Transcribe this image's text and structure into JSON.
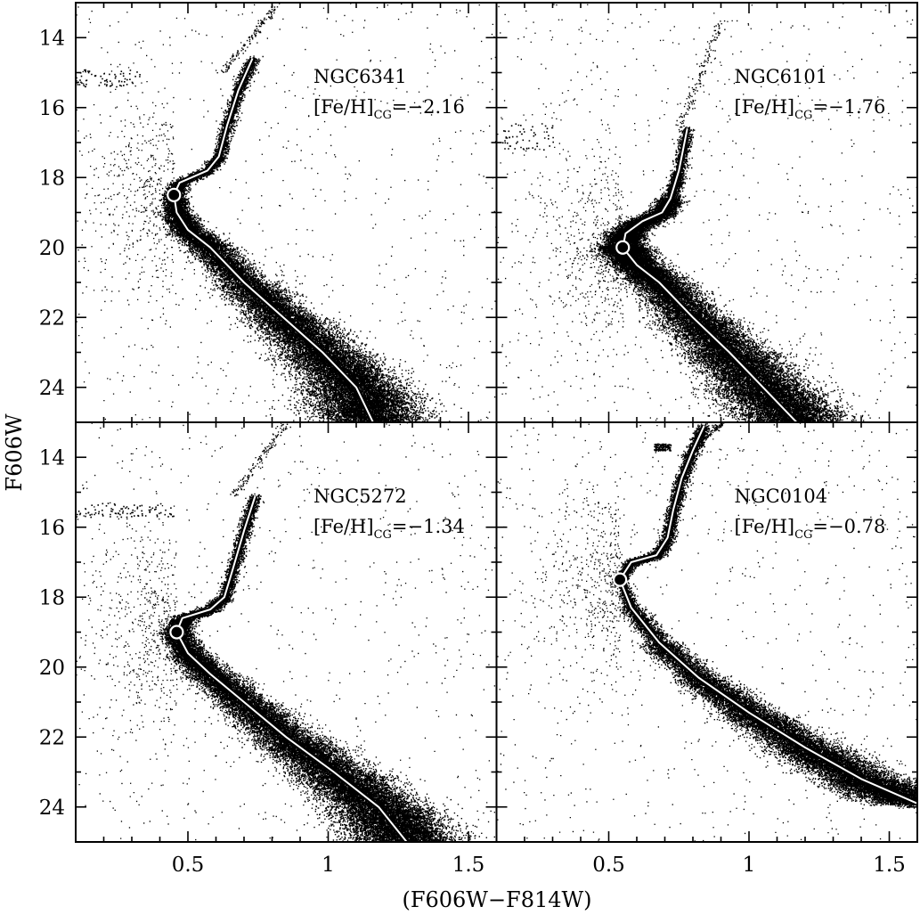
{
  "chart_data": {
    "type": "scatter",
    "layout": "2x2 panels, shared axes",
    "xlabel": "(F606W−F814W)",
    "ylabel": "F606W",
    "xlim": [
      0.1,
      1.6
    ],
    "ylim": [
      25,
      13
    ],
    "y_inverted": true,
    "x_ticks": [
      0.5,
      1,
      1.5
    ],
    "x_tick_labels": [
      "0.5",
      "1",
      "1.5"
    ],
    "y_ticks": [
      14,
      16,
      18,
      20,
      22,
      24
    ],
    "y_tick_labels": [
      "14",
      "16",
      "18",
      "20",
      "22",
      "24"
    ],
    "grid": false,
    "marker_color": "#000000",
    "fiducial_line_color": "#ffffff",
    "panels": [
      {
        "cluster": "NGC6341",
        "feh_label": "[Fe/H]",
        "feh_subscript": "CG",
        "feh_value": "=−2.16",
        "turnoff": {
          "x": 0.45,
          "y": 18.5
        },
        "fiducial": [
          [
            1.16,
            25.0
          ],
          [
            1.1,
            24.0
          ],
          [
            0.98,
            23.0
          ],
          [
            0.84,
            22.0
          ],
          [
            0.7,
            21.0
          ],
          [
            0.58,
            20.0
          ],
          [
            0.5,
            19.5
          ],
          [
            0.46,
            19.0
          ],
          [
            0.45,
            18.5
          ],
          [
            0.47,
            18.15
          ],
          [
            0.57,
            17.8
          ],
          [
            0.61,
            17.4
          ],
          [
            0.64,
            16.5
          ],
          [
            0.68,
            15.5
          ],
          [
            0.73,
            14.6
          ]
        ],
        "hb": {
          "x_range": [
            0.1,
            0.33
          ],
          "y_range": [
            14.9,
            15.4
          ],
          "n": 70
        },
        "rgb_top": {
          "x_range": [
            0.62,
            0.82
          ],
          "y_range": [
            13.0,
            15.0
          ]
        }
      },
      {
        "cluster": "NGC6101",
        "feh_label": "[Fe/H]",
        "feh_subscript": "CG",
        "feh_value": "=−1.76",
        "turnoff": {
          "x": 0.55,
          "y": 20.0
        },
        "fiducial": [
          [
            1.17,
            25.0
          ],
          [
            1.05,
            24.0
          ],
          [
            0.93,
            23.0
          ],
          [
            0.8,
            22.0
          ],
          [
            0.68,
            21.0
          ],
          [
            0.6,
            20.5
          ],
          [
            0.56,
            20.1
          ],
          [
            0.55,
            20.0
          ],
          [
            0.56,
            19.6
          ],
          [
            0.62,
            19.25
          ],
          [
            0.69,
            19.0
          ],
          [
            0.72,
            18.6
          ],
          [
            0.75,
            17.8
          ],
          [
            0.78,
            16.6
          ]
        ],
        "hb": {
          "x_range": [
            0.12,
            0.3
          ],
          "y_range": [
            16.4,
            17.2
          ],
          "n": 60
        },
        "rgb_top": {
          "x_range": [
            0.75,
            0.9
          ],
          "y_range": [
            13.5,
            16.6
          ]
        }
      },
      {
        "cluster": "NGC5272",
        "feh_label": "[Fe/H]",
        "feh_subscript": "CG",
        "feh_value": "=−1.34",
        "turnoff": {
          "x": 0.46,
          "y": 19.0
        },
        "fiducial": [
          [
            1.28,
            25.0
          ],
          [
            1.18,
            24.0
          ],
          [
            1.02,
            23.0
          ],
          [
            0.85,
            22.0
          ],
          [
            0.7,
            21.0
          ],
          [
            0.58,
            20.2
          ],
          [
            0.5,
            19.6
          ],
          [
            0.46,
            19.0
          ],
          [
            0.48,
            18.6
          ],
          [
            0.58,
            18.35
          ],
          [
            0.63,
            18.0
          ],
          [
            0.66,
            17.2
          ],
          [
            0.7,
            16.1
          ],
          [
            0.74,
            15.1
          ]
        ],
        "hb": {
          "x_range": [
            0.1,
            0.45
          ],
          "y_range": [
            15.3,
            15.7
          ],
          "n": 90
        },
        "rgb_top": {
          "x_range": [
            0.66,
            0.85
          ],
          "y_range": [
            13.0,
            15.1
          ]
        }
      },
      {
        "cluster": "NGC0104",
        "feh_label": "[Fe/H]",
        "feh_subscript": "CG",
        "feh_value": "=−0.78",
        "turnoff": {
          "x": 0.54,
          "y": 17.5
        },
        "fiducial": [
          [
            1.6,
            23.9
          ],
          [
            1.4,
            23.2
          ],
          [
            1.2,
            22.3
          ],
          [
            1.0,
            21.3
          ],
          [
            0.82,
            20.3
          ],
          [
            0.68,
            19.3
          ],
          [
            0.58,
            18.3
          ],
          [
            0.54,
            17.5
          ],
          [
            0.58,
            17.0
          ],
          [
            0.67,
            16.8
          ],
          [
            0.71,
            16.3
          ],
          [
            0.73,
            15.5
          ],
          [
            0.76,
            14.6
          ],
          [
            0.8,
            13.8
          ],
          [
            0.84,
            13.1
          ]
        ],
        "hb": {
          "x_range": [
            0.66,
            0.72
          ],
          "y_range": [
            13.6,
            13.8
          ],
          "n": 110
        },
        "rgb_top": {
          "x_range": [
            0.76,
            0.9
          ],
          "y_range": [
            13.0,
            14.0
          ]
        }
      }
    ]
  }
}
